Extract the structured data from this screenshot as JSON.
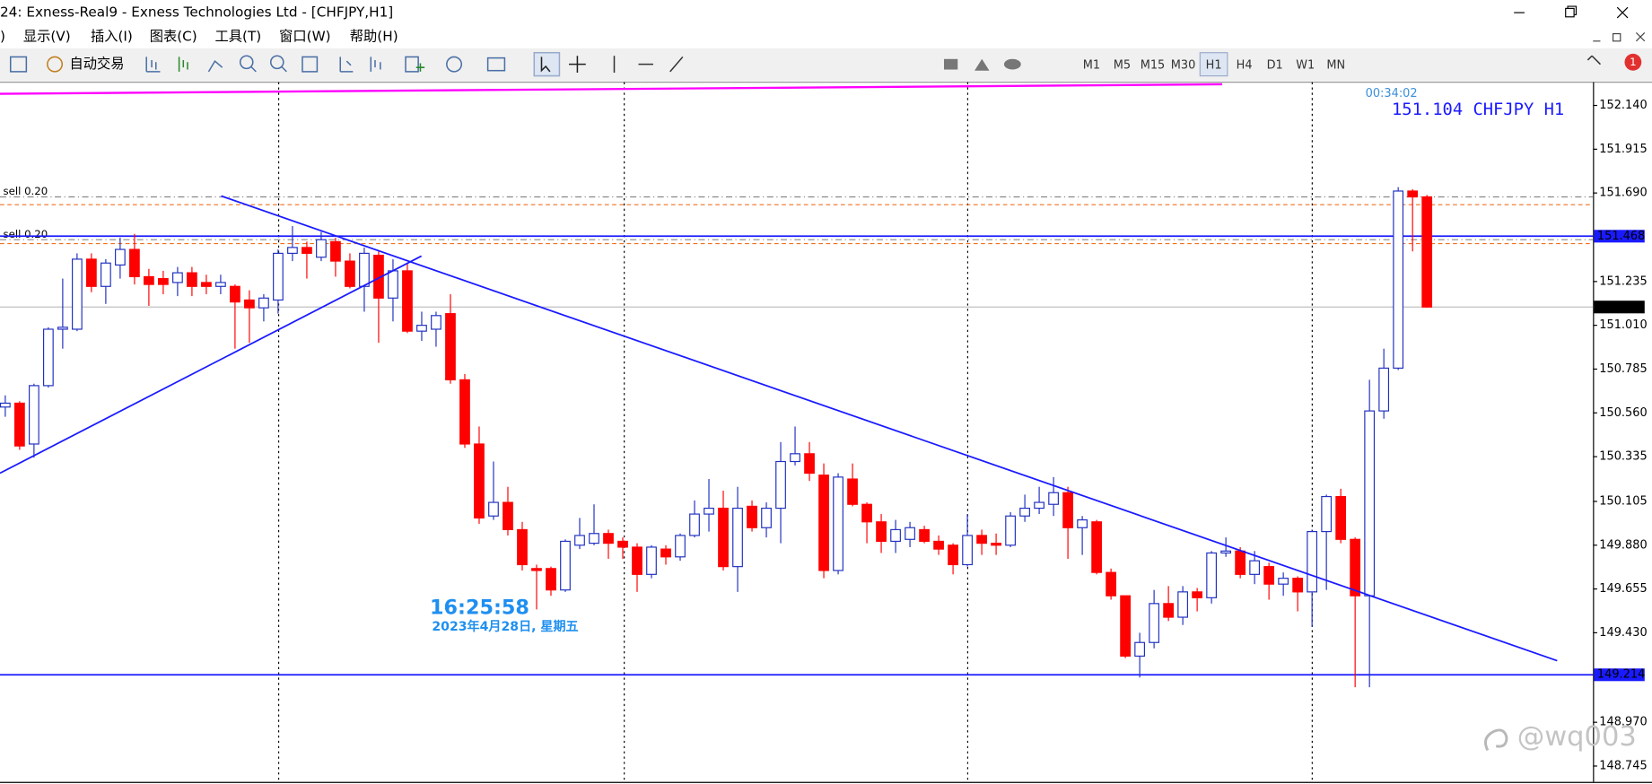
{
  "window": {
    "title": "24: Exness-Real9 - Exness Technologies Ltd - [CHFJPY,H1]"
  },
  "menu": [
    ")",
    "显示(V)",
    "插入(I)",
    "图表(C)",
    "工具(T)",
    "窗口(W)",
    "帮助(H)"
  ],
  "toolbar": {
    "auto_trading": "自动交易",
    "timeframes": [
      "M1",
      "M5",
      "M15",
      "M30",
      "H1",
      "H4",
      "D1",
      "W1",
      "MN"
    ],
    "active_timeframe": "H1",
    "notifications": 1
  },
  "chart_data": {
    "type": "candlestick",
    "symbol": "CHFJPY H1",
    "timer": "00:34:02",
    "bid": 151.104,
    "up_color": "#2030c0",
    "down_color": "#ff0000",
    "line_color": "#1a1aff",
    "ylim": [
      148.669,
      152.254
    ],
    "yticks": [
      {
        "value": 152.14,
        "label": "152.140"
      },
      151.915,
      {
        "value": 151.69,
        "label": "151.690"
      },
      151.235,
      {
        "value": 151.01,
        "label": "151.010"
      },
      150.785,
      {
        "value": 150.56,
        "label": "150.560"
      },
      150.335,
      150.105,
      {
        "value": 149.88,
        "label": "149.880"
      },
      149.655,
      {
        "value": 149.43,
        "label": "149.430"
      },
      {
        "value": 148.97,
        "label": "148.970"
      },
      148.745
    ],
    "hlines": [
      151.468,
      149.214
    ],
    "orders": [
      {
        "label": "sell 0.20",
        "price": 151.67,
        "stop": 151.63
      },
      {
        "label": "sell 0.20",
        "price": 151.45,
        "stop": 151.43
      }
    ],
    "open": [
      150.59,
      150.61,
      150.4,
      150.7,
      150.99,
      150.99,
      151.35,
      151.21,
      151.32,
      151.4,
      151.26,
      151.25,
      151.23,
      151.28,
      151.23,
      151.21,
      151.21,
      151.14,
      151.1,
      151.14,
      151.38,
      151.41,
      151.36,
      151.44,
      151.34,
      151.21,
      151.37,
      151.15,
      151.29,
      150.98,
      150.99,
      151.07,
      150.73,
      150.4,
      150.03,
      150.1,
      149.96,
      149.76,
      149.76,
      149.65,
      149.88,
      149.89,
      149.94,
      149.9,
      149.87,
      149.73,
      149.86,
      149.82,
      149.93,
      150.04,
      150.07,
      149.77,
      150.08,
      149.97,
      150.07,
      150.31,
      150.35,
      150.24,
      149.75,
      150.22,
      150.09,
      150.0,
      149.9,
      149.91,
      149.96,
      149.9,
      149.88,
      149.78,
      149.93,
      149.89,
      149.88,
      150.03,
      150.07,
      150.09,
      150.15,
      149.97,
      150.0,
      149.74,
      149.62,
      149.31,
      149.38,
      149.58,
      149.51,
      149.64,
      149.61,
      149.84,
      149.85,
      149.73,
      149.77,
      149.68,
      149.71,
      149.64,
      149.95,
      150.13,
      149.91,
      149.62,
      150.57,
      150.79,
      151.7,
      151.67
    ],
    "high": [
      150.65,
      150.62,
      150.71,
      151.0,
      151.25,
      151.38,
      151.38,
      151.35,
      151.46,
      151.48,
      151.3,
      151.29,
      151.31,
      151.31,
      151.27,
      151.27,
      151.22,
      151.19,
      151.17,
      151.4,
      151.52,
      151.44,
      151.49,
      151.46,
      151.38,
      151.41,
      151.39,
      151.35,
      151.33,
      151.08,
      151.08,
      151.17,
      150.76,
      150.49,
      150.31,
      150.18,
      150.0,
      149.78,
      149.77,
      149.91,
      150.02,
      150.09,
      149.96,
      149.92,
      149.89,
      149.88,
      149.88,
      149.94,
      150.11,
      150.22,
      150.16,
      150.18,
      150.11,
      150.1,
      150.41,
      150.49,
      150.41,
      150.3,
      150.25,
      150.3,
      150.1,
      150.04,
      150.01,
      150.0,
      149.98,
      149.93,
      149.89,
      150.04,
      149.96,
      149.94,
      150.05,
      150.14,
      150.18,
      150.23,
      150.18,
      150.03,
      150.01,
      149.76,
      149.62,
      149.43,
      149.65,
      149.67,
      149.67,
      149.66,
      149.85,
      149.92,
      149.87,
      149.85,
      149.79,
      149.74,
      149.72,
      149.96,
      150.14,
      150.17,
      149.92,
      150.73,
      150.89,
      151.72,
      151.71,
      151.68
    ],
    "low": [
      150.54,
      150.37,
      150.33,
      150.69,
      150.89,
      150.98,
      151.18,
      151.12,
      151.25,
      151.22,
      151.11,
      151.17,
      151.16,
      151.16,
      151.17,
      151.17,
      150.89,
      150.92,
      151.03,
      151.07,
      151.34,
      151.25,
      151.34,
      151.26,
      151.2,
      151.08,
      150.92,
      151.03,
      150.97,
      150.93,
      150.9,
      150.71,
      150.38,
      149.99,
      150.01,
      149.93,
      149.75,
      149.55,
      149.62,
      149.64,
      149.86,
      149.88,
      149.81,
      149.81,
      149.64,
      149.71,
      149.78,
      149.8,
      149.92,
      149.95,
      149.75,
      149.64,
      149.95,
      149.92,
      149.89,
      150.29,
      150.21,
      149.71,
      149.73,
      150.08,
      149.89,
      149.84,
      149.84,
      149.87,
      149.89,
      149.83,
      149.73,
      149.77,
      149.83,
      149.83,
      149.87,
      150.0,
      150.04,
      150.03,
      149.81,
      149.83,
      149.73,
      149.6,
      149.3,
      149.2,
      149.35,
      149.49,
      149.47,
      149.54,
      149.58,
      149.82,
      149.71,
      149.68,
      149.6,
      149.62,
      149.54,
      149.46,
      149.65,
      149.89,
      149.15,
      149.15,
      150.53,
      150.78,
      151.39,
      151.1
    ],
    "close": [
      150.61,
      150.39,
      150.7,
      150.99,
      151.0,
      151.35,
      151.21,
      151.33,
      151.4,
      151.26,
      151.22,
      151.22,
      151.28,
      151.21,
      151.21,
      151.23,
      151.13,
      151.1,
      151.15,
      151.38,
      151.41,
      151.38,
      151.45,
      151.34,
      151.21,
      151.38,
      151.15,
      151.29,
      150.98,
      151.01,
      151.06,
      150.73,
      150.4,
      150.02,
      150.1,
      149.96,
      149.78,
      149.75,
      149.65,
      149.9,
      149.93,
      149.94,
      149.89,
      149.87,
      149.73,
      149.87,
      149.82,
      149.93,
      150.04,
      150.07,
      149.77,
      150.07,
      149.97,
      150.07,
      150.31,
      150.35,
      150.25,
      149.75,
      150.23,
      150.09,
      150.0,
      149.9,
      149.96,
      149.97,
      149.9,
      149.86,
      149.78,
      149.93,
      149.89,
      149.88,
      150.03,
      150.07,
      150.1,
      150.15,
      149.97,
      150.01,
      149.74,
      149.62,
      149.31,
      149.38,
      149.58,
      149.51,
      149.64,
      149.61,
      149.84,
      149.85,
      149.73,
      149.8,
      149.68,
      149.71,
      149.64,
      149.95,
      150.13,
      149.91,
      149.62,
      150.57,
      150.79,
      151.7,
      151.67,
      151.104
    ]
  },
  "clock": {
    "time": "16:25:58",
    "date": "2023年4月28日, 星期五"
  },
  "watermark": "@wq003"
}
